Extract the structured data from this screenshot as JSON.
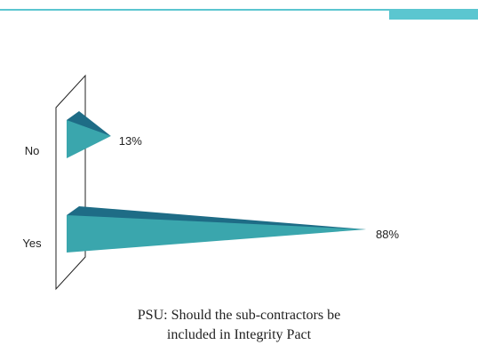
{
  "caption": {
    "line1": "PSU: Should the sub-contractors be",
    "line2": "included in Integrity Pact"
  },
  "colors": {
    "accent": "#5bc6d0",
    "bar_front": "#3aa6ad",
    "bar_top": "#1e6c86"
  },
  "chart_data": {
    "type": "bar",
    "orientation": "horizontal",
    "categories": [
      "No",
      "Yes"
    ],
    "values": [
      13,
      88
    ],
    "value_labels": [
      "13%",
      "88%"
    ],
    "title": "PSU: Should the sub-contractors be included in Integrity Pact",
    "xlim": [
      0,
      100
    ],
    "grid": false,
    "legend": "none"
  }
}
